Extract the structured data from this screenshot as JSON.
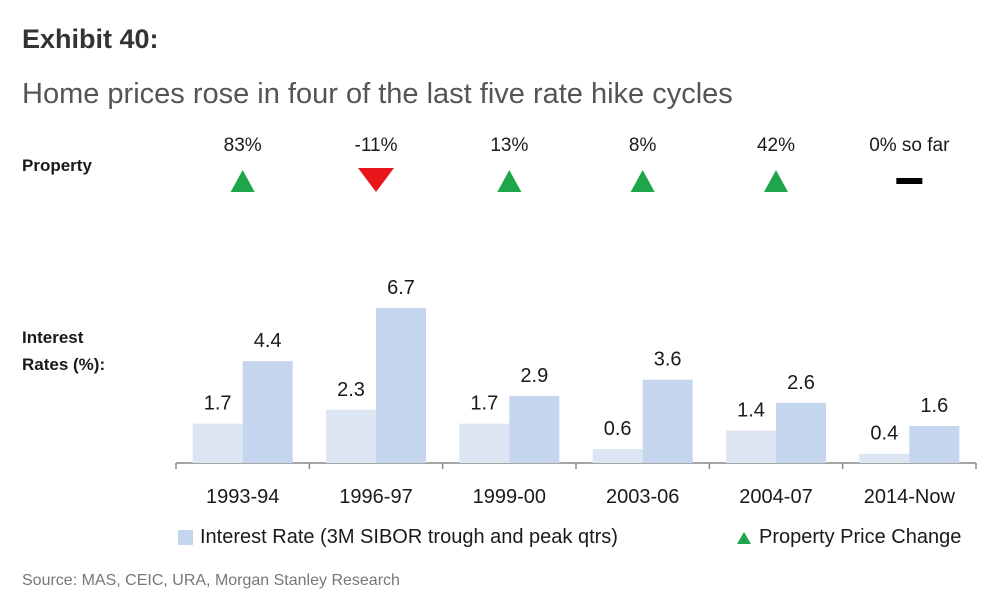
{
  "header": {
    "exhibit": "Exhibit 40:",
    "title": "Home prices rose in four of the last five rate hike cycles"
  },
  "labels": {
    "property": "Property",
    "interest_line1": "Interest",
    "interest_line2": "Rates (%):"
  },
  "source": "Source: MAS, CEIC, URA, Morgan Stanley Research",
  "legend": {
    "interest_rate": "Interest Rate (3M SIBOR trough and peak qtrs)",
    "property_change": "Property Price Change"
  },
  "colors": {
    "trough": "#dde5f2",
    "peak": "#c5d5ee",
    "up": "#1fa64a",
    "down": "#e8161b",
    "flat": "#000000",
    "axis": "#888888"
  },
  "chart_data": {
    "type": "bar",
    "categories": [
      "1993-94",
      "1996-97",
      "1999-00",
      "2003-06",
      "2004-07",
      "2014-Now"
    ],
    "series": [
      {
        "values": [
          1.7,
          2.3,
          1.7,
          0.6,
          1.4,
          0.4
        ]
      },
      {
        "values": [
          4.4,
          6.7,
          2.9,
          3.6,
          2.6,
          1.6
        ]
      }
    ],
    "property_change": {
      "labels": [
        "83%",
        "-11%",
        "13%",
        "8%",
        "42%",
        "0% so far"
      ],
      "direction": [
        "up",
        "down",
        "up",
        "up",
        "up",
        "flat"
      ]
    },
    "ylim": [
      0,
      7
    ]
  }
}
